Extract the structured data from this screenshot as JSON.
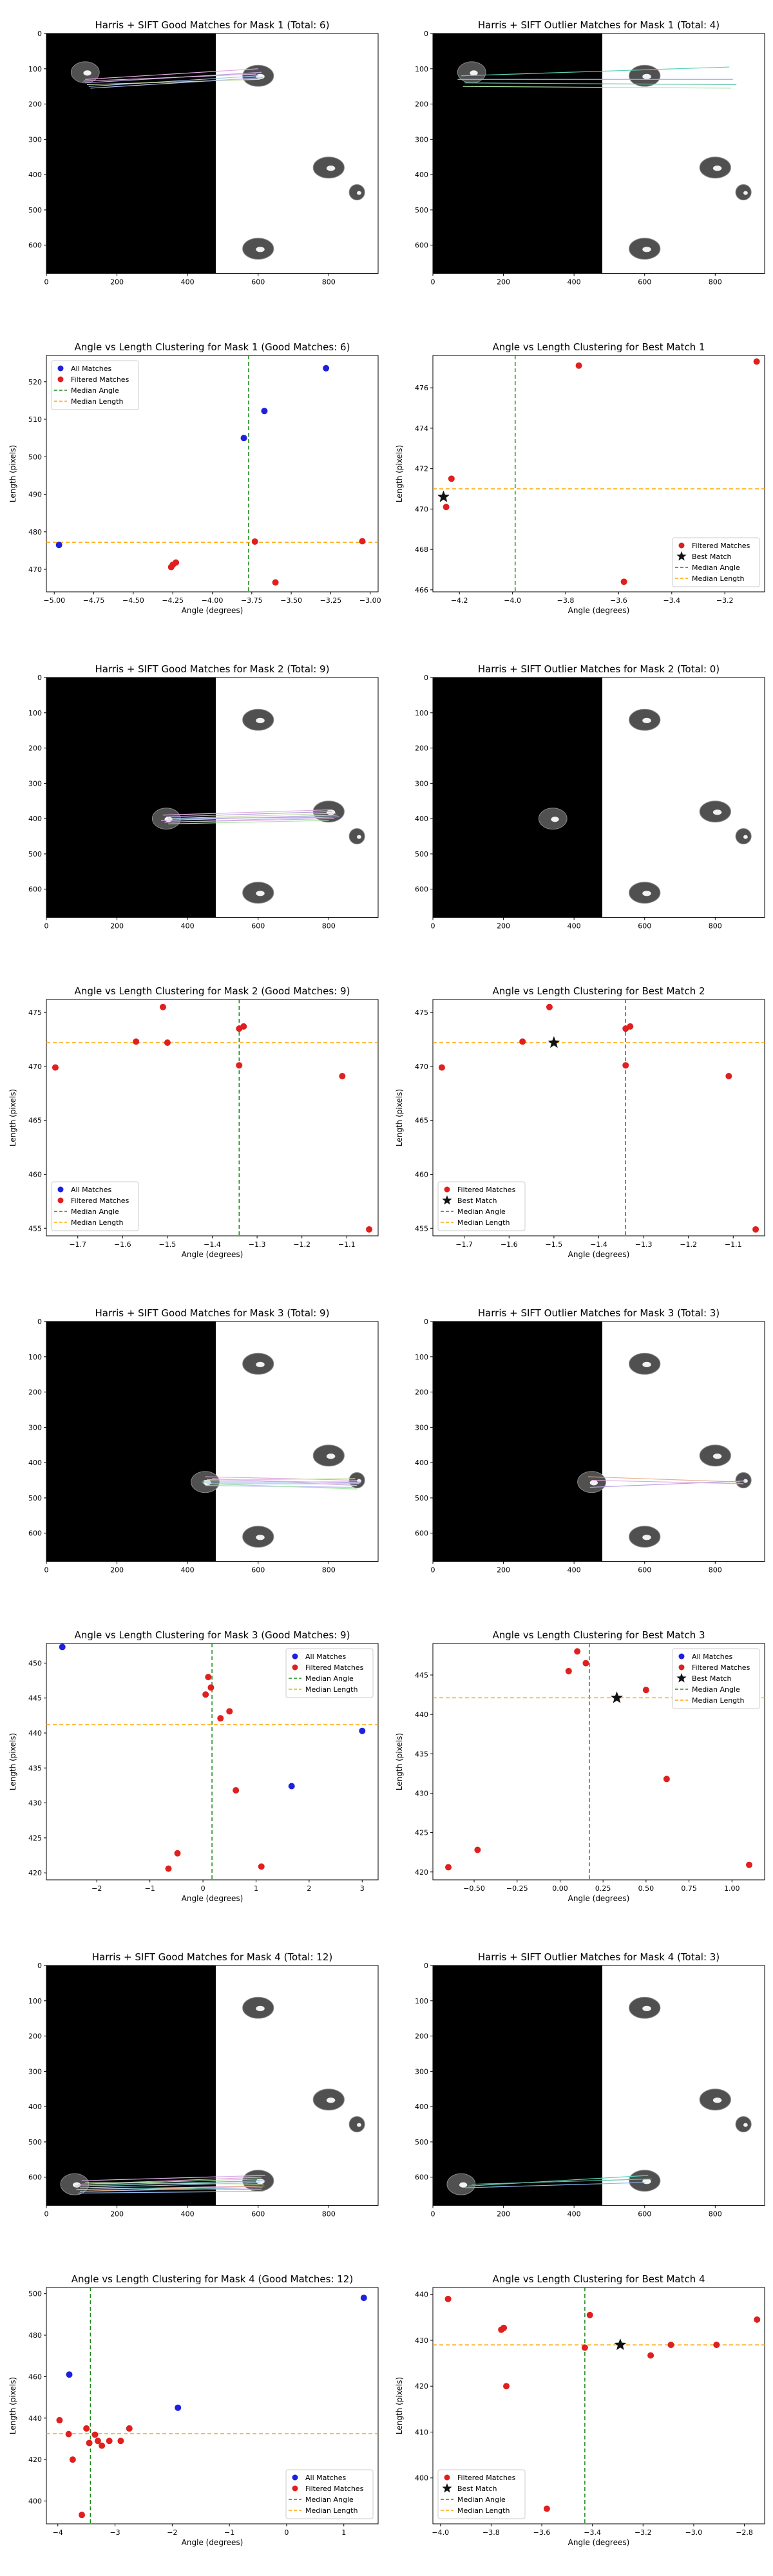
{
  "chart_data": [
    {
      "type": "image",
      "title": "Harris + SIFT Good Matches for Mask 1 (Total: 6)",
      "mask_y": 110,
      "lines": [
        [
          110,
          130,
          600,
          100
        ],
        [
          110,
          140,
          610,
          110
        ],
        [
          120,
          150,
          600,
          120
        ],
        [
          115,
          145,
          605,
          130
        ],
        [
          105,
          135,
          595,
          115
        ],
        [
          125,
          155,
          615,
          125
        ]
      ],
      "line_colors": [
        "#e4a7e0",
        "#b7a3e4",
        "#9cc8e6",
        "#c6e0a5",
        "#e2b0e0",
        "#b9b9f2"
      ]
    },
    {
      "type": "image",
      "title": "Harris + SIFT Outlier Matches for Mask 1 (Total: 4)",
      "mask_y": 110,
      "lines": [
        [
          80,
          120,
          840,
          95
        ],
        [
          90,
          140,
          860,
          145
        ],
        [
          85,
          150,
          845,
          155
        ],
        [
          70,
          130,
          850,
          130
        ]
      ],
      "line_colors": [
        "#5ad2b8",
        "#62c3a6",
        "#a6e6a3",
        "#8cb8ea"
      ]
    },
    {
      "type": "scatter",
      "title": "Angle vs Length Clustering for Mask 1 (Good Matches: 6)",
      "xlabel": "Angle (degrees)",
      "ylabel": "Length (pixels)",
      "xlim": [
        -5.05,
        -2.95
      ],
      "ylim": [
        464,
        527
      ],
      "xticks": [
        -5.0,
        -4.75,
        -4.5,
        -4.25,
        -4.0,
        -3.75,
        -3.5,
        -3.25,
        -3.0
      ],
      "yticks": [
        470,
        480,
        490,
        500,
        510,
        520
      ],
      "legend": [
        "All Matches",
        "Filtered Matches",
        "Median Angle",
        "Median Length"
      ],
      "legend_pos": "top-left",
      "median_angle": -3.77,
      "median_length": 477.2,
      "blue_points": [
        [
          -4.97,
          476.5
        ],
        [
          -3.8,
          505
        ],
        [
          -3.67,
          512.2
        ],
        [
          -3.28,
          523.6
        ]
      ],
      "red_points": [
        [
          -4.26,
          470.6
        ],
        [
          -4.25,
          471.2
        ],
        [
          -4.23,
          471.8
        ],
        [
          -3.73,
          477.4
        ],
        [
          -3.6,
          466.5
        ],
        [
          -3.05,
          477.5
        ]
      ],
      "best": null
    },
    {
      "type": "scatter",
      "title": "Angle vs Length Clustering for Best Match 1",
      "xlabel": "Angle (degrees)",
      "ylabel": "Length (pixels)",
      "xlim": [
        -4.3,
        -3.05
      ],
      "ylim": [
        465.9,
        477.6
      ],
      "xticks": [
        -4.2,
        -4.0,
        -3.8,
        -3.6,
        -3.4,
        -3.2
      ],
      "yticks": [
        466,
        468,
        470,
        472,
        474,
        476
      ],
      "legend": [
        "Filtered Matches",
        "Best Match",
        "Median Angle",
        "Median Length"
      ],
      "legend_pos": "bottom-right",
      "median_angle": -3.99,
      "median_length": 471.0,
      "blue_points": [],
      "red_points": [
        [
          -4.25,
          470.1
        ],
        [
          -4.23,
          471.5
        ],
        [
          -3.75,
          477.1
        ],
        [
          -3.58,
          466.4
        ],
        [
          -3.08,
          477.3
        ]
      ],
      "best": [
        -4.26,
        470.6
      ]
    },
    {
      "type": "image",
      "title": "Harris + SIFT Good Matches for Mask 2 (Total: 9)",
      "mask_y": 400,
      "lines": [
        [
          340,
          395,
          810,
          380
        ],
        [
          345,
          400,
          820,
          385
        ],
        [
          350,
          405,
          825,
          390
        ],
        [
          330,
          390,
          805,
          375
        ],
        [
          355,
          410,
          830,
          395
        ],
        [
          335,
          410,
          815,
          400
        ],
        [
          345,
          415,
          800,
          405
        ],
        [
          360,
          400,
          810,
          395
        ],
        [
          325,
          405,
          820,
          390
        ]
      ],
      "line_colors": [
        "#b7a3e4",
        "#c6e0a5",
        "#9cc8e6",
        "#e2b0e0",
        "#b9b9f2",
        "#e4a7e0",
        "#a6e6a3",
        "#8cb8ea",
        "#d8b0e8"
      ]
    },
    {
      "type": "image",
      "title": "Harris + SIFT Outlier Matches for Mask 2 (Total: 0)",
      "mask_y": 400,
      "lines": [],
      "line_colors": []
    },
    {
      "type": "scatter",
      "title": "Angle vs Length Clustering for Mask 2 (Good Matches: 9)",
      "xlabel": "Angle (degrees)",
      "ylabel": "Length (pixels)",
      "xlim": [
        -1.77,
        -1.03
      ],
      "ylim": [
        454.3,
        476.2
      ],
      "xticks": [
        -1.7,
        -1.6,
        -1.5,
        -1.4,
        -1.3,
        -1.2,
        -1.1
      ],
      "yticks": [
        455,
        460,
        465,
        470,
        475
      ],
      "legend": [
        "All Matches",
        "Filtered Matches",
        "Median Angle",
        "Median Length"
      ],
      "legend_pos": "bottom-left",
      "median_angle": -1.34,
      "median_length": 472.2,
      "blue_points": [],
      "red_points": [
        [
          -1.75,
          469.9
        ],
        [
          -1.57,
          472.3
        ],
        [
          -1.51,
          475.5
        ],
        [
          -1.5,
          472.2
        ],
        [
          -1.34,
          470.1
        ],
        [
          -1.34,
          473.5
        ],
        [
          -1.33,
          473.7
        ],
        [
          -1.11,
          469.1
        ],
        [
          -1.05,
          454.9
        ]
      ],
      "best": null
    },
    {
      "type": "scatter",
      "title": "Angle vs Length Clustering for Best Match 2",
      "xlabel": "Angle (degrees)",
      "ylabel": "Length (pixels)",
      "xlim": [
        -1.77,
        -1.03
      ],
      "ylim": [
        454.3,
        476.2
      ],
      "xticks": [
        -1.7,
        -1.6,
        -1.5,
        -1.4,
        -1.3,
        -1.2,
        -1.1
      ],
      "yticks": [
        455,
        460,
        465,
        470,
        475
      ],
      "legend": [
        "Filtered Matches",
        "Best Match",
        "Median Angle",
        "Median Length"
      ],
      "legend_pos": "bottom-left",
      "median_angle": -1.34,
      "median_length": 472.2,
      "blue_points": [],
      "red_points": [
        [
          -1.75,
          469.9
        ],
        [
          -1.57,
          472.3
        ],
        [
          -1.51,
          475.5
        ],
        [
          -1.34,
          470.1
        ],
        [
          -1.34,
          473.5
        ],
        [
          -1.33,
          473.7
        ],
        [
          -1.11,
          469.1
        ],
        [
          -1.05,
          454.9
        ]
      ],
      "best": [
        -1.5,
        472.2
      ]
    },
    {
      "type": "image",
      "title": "Harris + SIFT Good Matches for Mask 3 (Total: 9)",
      "mask_y": 455,
      "lines": [
        [
          450,
          440,
          880,
          450
        ],
        [
          460,
          455,
          890,
          455
        ],
        [
          455,
          460,
          885,
          460
        ],
        [
          445,
          450,
          875,
          445
        ],
        [
          470,
          445,
          880,
          465
        ],
        [
          450,
          465,
          870,
          470
        ],
        [
          465,
          460,
          880,
          475
        ],
        [
          440,
          455,
          885,
          455
        ],
        [
          455,
          448,
          890,
          458
        ]
      ],
      "line_colors": [
        "#e4a7e0",
        "#b7a3e4",
        "#9cc8e6",
        "#c6e0a5",
        "#e2b0e0",
        "#b9b9f2",
        "#a6e6a3",
        "#8cb8ea",
        "#d8b0e8"
      ]
    },
    {
      "type": "image",
      "title": "Harris + SIFT Outlier Matches for Mask 3 (Total: 3)",
      "mask_y": 455,
      "lines": [
        [
          440,
          440,
          870,
          455
        ],
        [
          450,
          450,
          880,
          460
        ],
        [
          445,
          470,
          885,
          452
        ]
      ],
      "line_colors": [
        "#e6b18e",
        "#e4a7e0",
        "#b7a3e4"
      ]
    },
    {
      "type": "scatter",
      "title": "Angle vs Length Clustering for Mask 3 (Good Matches: 9)",
      "xlabel": "Angle (degrees)",
      "ylabel": "Length (pixels)",
      "xlim": [
        -2.95,
        3.3
      ],
      "ylim": [
        419,
        452.8
      ],
      "xticks": [
        -2,
        -1,
        0,
        1,
        2,
        3
      ],
      "yticks": [
        420,
        425,
        430,
        435,
        440,
        445,
        450
      ],
      "legend": [
        "All Matches",
        "Filtered Matches",
        "Median Angle",
        "Median Length"
      ],
      "legend_pos": "top-right",
      "median_angle": 0.17,
      "median_length": 441.2,
      "blue_points": [
        [
          -2.65,
          452.3
        ],
        [
          1.67,
          432.4
        ],
        [
          3.0,
          440.3
        ]
      ],
      "red_points": [
        [
          -0.65,
          420.6
        ],
        [
          -0.48,
          422.8
        ],
        [
          0.05,
          445.5
        ],
        [
          0.1,
          448
        ],
        [
          0.15,
          446.5
        ],
        [
          0.33,
          442.1
        ],
        [
          0.5,
          443.1
        ],
        [
          0.62,
          431.8
        ],
        [
          1.1,
          420.9
        ]
      ],
      "best": null
    },
    {
      "type": "scatter",
      "title": "Angle vs Length Clustering for Best Match 3",
      "xlabel": "Angle (degrees)",
      "ylabel": "Length (pixels)",
      "xlim": [
        -0.74,
        1.19
      ],
      "ylim": [
        419,
        449
      ],
      "xticks": [
        -0.5,
        -0.25,
        0.0,
        0.25,
        0.5,
        0.75,
        1.0
      ],
      "yticks": [
        420,
        425,
        430,
        435,
        440,
        445
      ],
      "legend": [
        "All Matches",
        "Filtered Matches",
        "Best Match",
        "Median Angle",
        "Median Length"
      ],
      "legend_pos": "top-right",
      "median_angle": 0.17,
      "median_length": 442.1,
      "blue_points": [],
      "red_points": [
        [
          -0.65,
          420.6
        ],
        [
          -0.48,
          422.8
        ],
        [
          0.05,
          445.5
        ],
        [
          0.1,
          448
        ],
        [
          0.15,
          446.5
        ],
        [
          0.5,
          443.1
        ],
        [
          0.62,
          431.8
        ],
        [
          1.1,
          420.9
        ]
      ],
      "best": [
        0.33,
        442.1
      ]
    },
    {
      "type": "image",
      "title": "Harris + SIFT Good Matches for Mask 4 (Total: 12)",
      "mask_y": 620,
      "lines": [
        [
          90,
          620,
          610,
          600
        ],
        [
          100,
          625,
          620,
          610
        ],
        [
          95,
          630,
          605,
          615
        ],
        [
          110,
          615,
          615,
          620
        ],
        [
          85,
          635,
          600,
          625
        ],
        [
          105,
          640,
          612,
          630
        ],
        [
          120,
          620,
          600,
          605
        ],
        [
          90,
          645,
          615,
          640
        ],
        [
          100,
          610,
          620,
          595
        ],
        [
          115,
          630,
          610,
          635
        ],
        [
          80,
          625,
          605,
          610
        ],
        [
          95,
          640,
          618,
          625
        ]
      ],
      "line_colors": [
        "#e4a7e0",
        "#b7a3e4",
        "#9cc8e6",
        "#c6e0a5",
        "#e2b0e0",
        "#b9b9f2",
        "#a6e6a3",
        "#8cb8ea",
        "#d8b0e8",
        "#5ad2b8",
        "#62c3a6",
        "#e6b18e"
      ]
    },
    {
      "type": "image",
      "title": "Harris + SIFT Outlier Matches for Mask 4 (Total: 3)",
      "mask_y": 620,
      "lines": [
        [
          100,
          625,
          610,
          595
        ],
        [
          110,
          620,
          620,
          605
        ],
        [
          90,
          630,
          600,
          615
        ]
      ],
      "line_colors": [
        "#5ad2b8",
        "#62c3a6",
        "#8cb8ea"
      ]
    },
    {
      "type": "scatter",
      "title": "Angle vs Length Clustering for Mask 4 (Good Matches: 12)",
      "xlabel": "Angle (degrees)",
      "ylabel": "Length (pixels)",
      "xlim": [
        -4.2,
        1.6
      ],
      "ylim": [
        389,
        503
      ],
      "xticks": [
        -4,
        -3,
        -2,
        -1,
        0,
        1
      ],
      "yticks": [
        400,
        420,
        440,
        460,
        480,
        500
      ],
      "legend": [
        "All Matches",
        "Filtered Matches",
        "Median Angle",
        "Median Length"
      ],
      "legend_pos": "bottom-right",
      "median_angle": -3.43,
      "median_length": 432.5,
      "blue_points": [
        [
          -3.8,
          461
        ],
        [
          -1.9,
          445
        ],
        [
          1.35,
          498
        ]
      ],
      "red_points": [
        [
          -3.97,
          439
        ],
        [
          -3.81,
          432.3
        ],
        [
          -3.74,
          420
        ],
        [
          -3.58,
          393.3
        ],
        [
          -3.5,
          435
        ],
        [
          -3.45,
          428
        ],
        [
          -3.3,
          429
        ],
        [
          -3.23,
          426.7
        ],
        [
          -3.1,
          429
        ],
        [
          -2.9,
          429
        ],
        [
          -2.75,
          435
        ],
        [
          -3.35,
          432
        ]
      ],
      "best": null
    },
    {
      "type": "scatter",
      "title": "Angle vs Length Clustering for Best Match 4",
      "xlabel": "Angle (degrees)",
      "ylabel": "Length (pixels)",
      "xlim": [
        -4.03,
        -2.72
      ],
      "ylim": [
        390,
        441.5
      ],
      "xticks": [
        -4.0,
        -3.8,
        -3.6,
        -3.4,
        -3.2,
        -3.0,
        -2.8
      ],
      "yticks": [
        400,
        410,
        420,
        430,
        440
      ],
      "legend": [
        "Filtered Matches",
        "Best Match",
        "Median Angle",
        "Median Length"
      ],
      "legend_pos": "bottom-left",
      "median_angle": -3.43,
      "median_length": 429.0,
      "blue_points": [],
      "red_points": [
        [
          -3.97,
          439
        ],
        [
          -3.76,
          432.3
        ],
        [
          -3.74,
          420
        ],
        [
          -3.58,
          393.3
        ],
        [
          -3.43,
          428.4
        ],
        [
          -3.41,
          435.5
        ],
        [
          -3.17,
          426.7
        ],
        [
          -3.09,
          429
        ],
        [
          -2.91,
          429
        ],
        [
          -2.75,
          434.5
        ],
        [
          -3.75,
          432.7
        ]
      ],
      "best": [
        -3.29,
        429
      ]
    }
  ]
}
